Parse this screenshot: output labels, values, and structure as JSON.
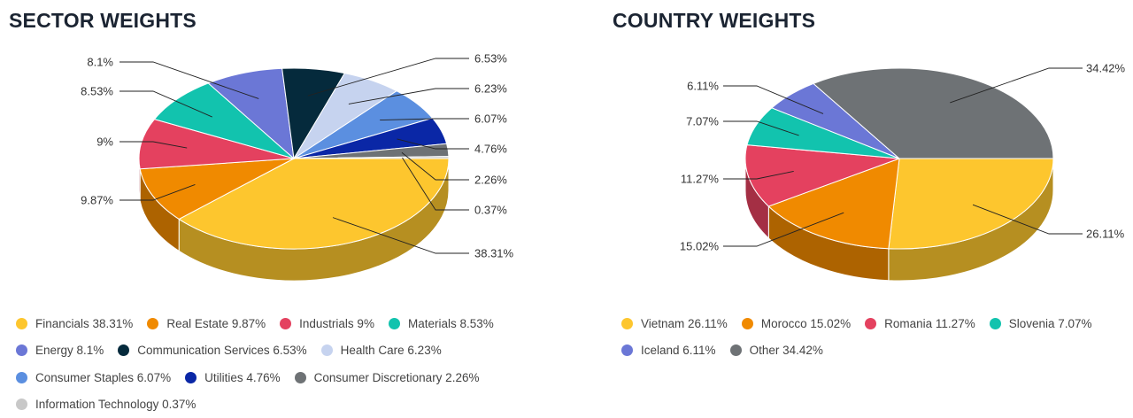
{
  "chart_data": [
    {
      "type": "pie",
      "title": "SECTOR WEIGHTS",
      "slices": [
        {
          "name": "Financials",
          "value": 38.31,
          "label": "38.31%",
          "legend": "Financials 38.31%",
          "color": "#fdc62e"
        },
        {
          "name": "Real Estate",
          "value": 9.87,
          "label": "9.87%",
          "legend": "Real Estate 9.87%",
          "color": "#f08a00"
        },
        {
          "name": "Industrials",
          "value": 9,
          "label": "9%",
          "legend": "Industrials 9%",
          "color": "#e4415f"
        },
        {
          "name": "Materials",
          "value": 8.53,
          "label": "8.53%",
          "legend": "Materials 8.53%",
          "color": "#12c3ae"
        },
        {
          "name": "Energy",
          "value": 8.1,
          "label": "8.1%",
          "legend": "Energy 8.1%",
          "color": "#6b77d6"
        },
        {
          "name": "Communication Services",
          "value": 6.53,
          "label": "6.53%",
          "legend": "Communication Services 6.53%",
          "color": "#052a3c"
        },
        {
          "name": "Health Care",
          "value": 6.23,
          "label": "6.23%",
          "legend": "Health Care 6.23%",
          "color": "#c6d3ef"
        },
        {
          "name": "Consumer Staples",
          "value": 6.07,
          "label": "6.07%",
          "legend": "Consumer Staples 6.07%",
          "color": "#5b8fe0"
        },
        {
          "name": "Utilities",
          "value": 4.76,
          "label": "4.76%",
          "legend": "Utilities 4.76%",
          "color": "#0a27a6"
        },
        {
          "name": "Consumer Discretionary",
          "value": 2.26,
          "label": "2.26%",
          "legend": "Consumer Discretionary 2.26%",
          "color": "#6e7275"
        },
        {
          "name": "Information Technology",
          "value": 0.37,
          "label": "0.37%",
          "legend": "Information Technology 0.37%",
          "color": "#c8c8c8"
        }
      ],
      "legend_rows": [
        [
          0,
          1,
          2,
          3
        ],
        [
          4,
          5,
          6
        ],
        [
          7,
          8,
          9
        ],
        [
          10
        ]
      ]
    },
    {
      "type": "pie",
      "title": "COUNTRY WEIGHTS",
      "slices": [
        {
          "name": "Vietnam",
          "value": 26.11,
          "label": "26.11%",
          "legend": "Vietnam 26.11%",
          "color": "#fdc62e"
        },
        {
          "name": "Morocco",
          "value": 15.02,
          "label": "15.02%",
          "legend": "Morocco 15.02%",
          "color": "#f08a00"
        },
        {
          "name": "Romania",
          "value": 11.27,
          "label": "11.27%",
          "legend": "Romania 11.27%",
          "color": "#e4415f"
        },
        {
          "name": "Slovenia",
          "value": 7.07,
          "label": "7.07%",
          "legend": "Slovenia 7.07%",
          "color": "#12c3ae"
        },
        {
          "name": "Iceland",
          "value": 6.11,
          "label": "6.11%",
          "legend": "Iceland 6.11%",
          "color": "#6b77d6"
        },
        {
          "name": "Other",
          "value": 34.42,
          "label": "34.42%",
          "legend": "Other 34.42%",
          "color": "#6e7275"
        }
      ],
      "legend_rows": [
        [
          0,
          1,
          2,
          3
        ],
        [
          4,
          5
        ]
      ]
    }
  ]
}
